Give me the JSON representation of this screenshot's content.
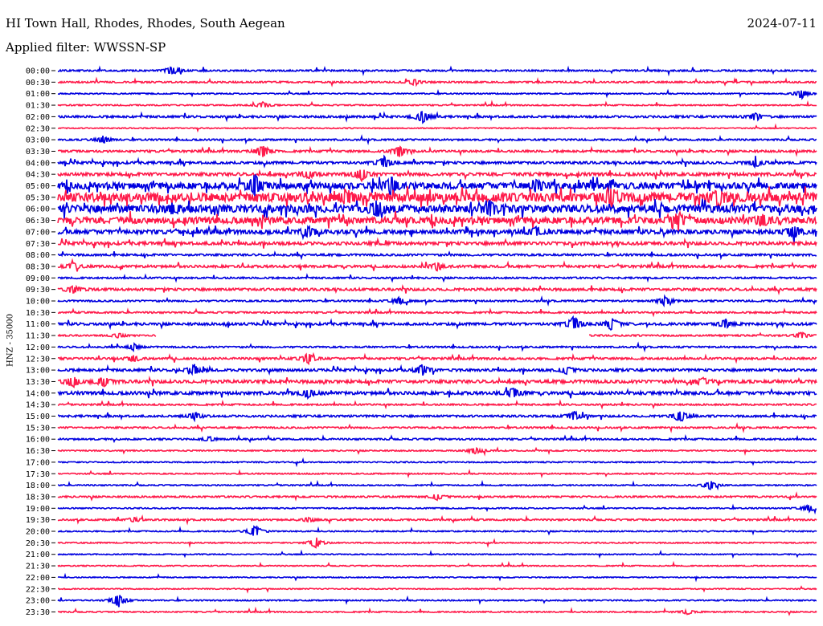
{
  "header": {
    "station": "HI Town Hall, Rhodes, Rhodes, South Aegean",
    "date": "2024-07-11",
    "filter": "Applied filter: WWSSN-SP"
  },
  "chart_data": {
    "type": "line",
    "ylabel": "HNZ - 35000",
    "colors": [
      "#0000e0",
      "#ff1a4a"
    ],
    "rows": [
      {
        "time": "00:00",
        "activity": 0.8,
        "events": [
          {
            "t": 0.15,
            "a": 6
          }
        ]
      },
      {
        "time": "00:30",
        "activity": 0.8,
        "events": [
          {
            "t": 0.47,
            "a": 4
          }
        ]
      },
      {
        "time": "01:00",
        "activity": 0.6,
        "events": [
          {
            "t": 0.98,
            "a": 6
          }
        ]
      },
      {
        "time": "01:30",
        "activity": 0.6,
        "events": [
          {
            "t": 0.27,
            "a": 4
          }
        ]
      },
      {
        "time": "02:00",
        "activity": 1.0,
        "events": [
          {
            "t": 0.48,
            "a": 8
          },
          {
            "t": 0.92,
            "a": 5
          }
        ]
      },
      {
        "time": "02:30",
        "activity": 0.5,
        "events": []
      },
      {
        "time": "03:00",
        "activity": 0.8,
        "events": [
          {
            "t": 0.06,
            "a": 5
          }
        ]
      },
      {
        "time": "03:30",
        "activity": 1.0,
        "events": [
          {
            "t": 0.27,
            "a": 8
          },
          {
            "t": 0.45,
            "a": 8
          }
        ]
      },
      {
        "time": "04:00",
        "activity": 1.2,
        "events": [
          {
            "t": 0.43,
            "a": 7
          },
          {
            "t": 0.92,
            "a": 5
          }
        ]
      },
      {
        "time": "04:30",
        "activity": 1.5,
        "events": [
          {
            "t": 0.4,
            "a": 8
          },
          {
            "t": 0.33,
            "a": 5
          }
        ]
      },
      {
        "time": "05:00",
        "activity": 3.0,
        "events": [
          {
            "t": 0.26,
            "a": 13
          },
          {
            "t": 0.44,
            "a": 12
          },
          {
            "t": 0.63,
            "a": 8
          }
        ]
      },
      {
        "time": "05:30",
        "activity": 4.0,
        "events": [
          {
            "t": 0.38,
            "a": 8
          },
          {
            "t": 0.73,
            "a": 10
          },
          {
            "t": 0.87,
            "a": 10
          }
        ]
      },
      {
        "time": "06:00",
        "activity": 3.5,
        "events": [
          {
            "t": 0.42,
            "a": 9
          },
          {
            "t": 0.57,
            "a": 8
          },
          {
            "t": 0.15,
            "a": 6
          }
        ]
      },
      {
        "time": "06:30",
        "activity": 3.0,
        "events": [
          {
            "t": 0.82,
            "a": 8
          },
          {
            "t": 0.93,
            "a": 8
          }
        ]
      },
      {
        "time": "07:00",
        "activity": 2.0,
        "events": [
          {
            "t": 0.33,
            "a": 7
          },
          {
            "t": 0.97,
            "a": 8
          },
          {
            "t": 0.63,
            "a": 6
          }
        ]
      },
      {
        "time": "07:30",
        "activity": 1.5,
        "events": []
      },
      {
        "time": "08:00",
        "activity": 1.0,
        "events": []
      },
      {
        "time": "08:30",
        "activity": 1.2,
        "events": [
          {
            "t": 0.5,
            "a": 5
          },
          {
            "t": 0.02,
            "a": 4
          }
        ]
      },
      {
        "time": "09:00",
        "activity": 0.8,
        "events": []
      },
      {
        "time": "09:30",
        "activity": 1.2,
        "events": [
          {
            "t": 0.02,
            "a": 5
          }
        ]
      },
      {
        "time": "10:00",
        "activity": 0.8,
        "events": [
          {
            "t": 0.45,
            "a": 5
          },
          {
            "t": 0.8,
            "a": 6
          }
        ]
      },
      {
        "time": "10:30",
        "activity": 0.8,
        "events": []
      },
      {
        "time": "11:00",
        "activity": 1.2,
        "events": [
          {
            "t": 0.68,
            "a": 9
          },
          {
            "t": 0.73,
            "a": 8
          },
          {
            "t": 0.88,
            "a": 6
          }
        ]
      },
      {
        "time": "11:30",
        "activity": 0.8,
        "events": [
          {
            "t": 0.08,
            "a": 3
          },
          {
            "t": 0.98,
            "a": 4
          }
        ],
        "gap": [
          0.13,
          0.7
        ]
      },
      {
        "time": "12:00",
        "activity": 0.8,
        "events": [
          {
            "t": 0.1,
            "a": 4
          }
        ]
      },
      {
        "time": "12:30",
        "activity": 1.0,
        "events": [
          {
            "t": 0.33,
            "a": 7
          },
          {
            "t": 0.1,
            "a": 4
          }
        ]
      },
      {
        "time": "13:00",
        "activity": 1.2,
        "events": [
          {
            "t": 0.18,
            "a": 6
          },
          {
            "t": 0.48,
            "a": 7
          },
          {
            "t": 0.67,
            "a": 5
          }
        ]
      },
      {
        "time": "13:30",
        "activity": 1.5,
        "events": [
          {
            "t": 0.02,
            "a": 7
          },
          {
            "t": 0.06,
            "a": 6
          },
          {
            "t": 0.85,
            "a": 5
          }
        ]
      },
      {
        "time": "14:00",
        "activity": 1.5,
        "events": [
          {
            "t": 0.33,
            "a": 6
          },
          {
            "t": 0.6,
            "a": 7
          }
        ]
      },
      {
        "time": "14:30",
        "activity": 0.8,
        "events": []
      },
      {
        "time": "15:00",
        "activity": 1.0,
        "events": [
          {
            "t": 0.18,
            "a": 5
          },
          {
            "t": 0.68,
            "a": 6
          },
          {
            "t": 0.82,
            "a": 8
          }
        ]
      },
      {
        "time": "15:30",
        "activity": 0.8,
        "events": []
      },
      {
        "time": "16:00",
        "activity": 0.8,
        "events": [
          {
            "t": 0.2,
            "a": 3
          }
        ]
      },
      {
        "time": "16:30",
        "activity": 0.6,
        "events": [
          {
            "t": 0.55,
            "a": 5
          }
        ]
      },
      {
        "time": "17:00",
        "activity": 0.6,
        "events": []
      },
      {
        "time": "17:30",
        "activity": 0.6,
        "events": []
      },
      {
        "time": "18:00",
        "activity": 0.6,
        "events": [
          {
            "t": 0.86,
            "a": 6
          }
        ]
      },
      {
        "time": "18:30",
        "activity": 0.8,
        "events": [
          {
            "t": 0.5,
            "a": 4
          }
        ]
      },
      {
        "time": "19:00",
        "activity": 0.6,
        "events": [
          {
            "t": 0.99,
            "a": 5
          }
        ]
      },
      {
        "time": "19:30",
        "activity": 0.8,
        "events": [
          {
            "t": 0.1,
            "a": 3
          },
          {
            "t": 0.33,
            "a": 3
          }
        ]
      },
      {
        "time": "20:00",
        "activity": 0.6,
        "events": [
          {
            "t": 0.26,
            "a": 8
          }
        ]
      },
      {
        "time": "20:30",
        "activity": 0.6,
        "events": [
          {
            "t": 0.34,
            "a": 7
          }
        ]
      },
      {
        "time": "21:00",
        "activity": 0.5,
        "events": []
      },
      {
        "time": "21:30",
        "activity": 0.5,
        "events": []
      },
      {
        "time": "22:00",
        "activity": 0.5,
        "events": []
      },
      {
        "time": "22:30",
        "activity": 0.5,
        "events": []
      },
      {
        "time": "23:00",
        "activity": 0.6,
        "events": [
          {
            "t": 0.08,
            "a": 9
          }
        ]
      },
      {
        "time": "23:30",
        "activity": 0.6,
        "events": [
          {
            "t": 0.83,
            "a": 3
          }
        ]
      }
    ]
  }
}
